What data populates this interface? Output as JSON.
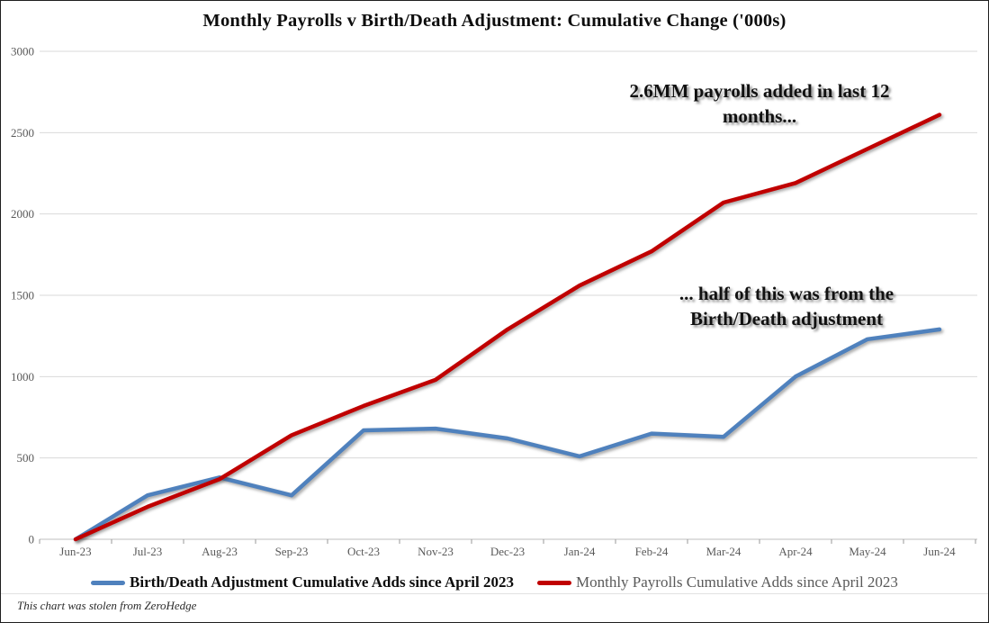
{
  "chart_data": {
    "type": "line",
    "title": "Monthly Payrolls v Birth/Death Adjustment: Cumulative Change ('000s)",
    "categories": [
      "Jun-23",
      "Jul-23",
      "Aug-23",
      "Sep-23",
      "Oct-23",
      "Nov-23",
      "Dec-23",
      "Jan-24",
      "Feb-24",
      "Mar-24",
      "Apr-24",
      "May-24",
      "Jun-24"
    ],
    "series": [
      {
        "name": "Birth/Death Adjustment Cumulative Adds since April 2023",
        "color": "#4F81BD",
        "values": [
          0,
          270,
          380,
          270,
          670,
          680,
          620,
          510,
          650,
          630,
          1000,
          1230,
          1290
        ]
      },
      {
        "name": "Monthly Payrolls Cumulative Adds since April 2023",
        "color": "#C00000",
        "values": [
          0,
          200,
          370,
          640,
          820,
          980,
          1290,
          1560,
          1770,
          2070,
          2190,
          2400,
          2610
        ]
      }
    ],
    "ylim": [
      0,
      3000
    ],
    "ytick_step": 500,
    "grid": true,
    "legend_position": "bottom",
    "annotations": [
      {
        "text": "2.6MM payrolls added in last 12\nmonths..."
      },
      {
        "text": "... half of this was from the\nBirth/Death adjustment"
      }
    ]
  },
  "footer": {
    "text": "This chart was stolen from ZeroHedge"
  },
  "colors": {
    "gridline": "#D9D9D9",
    "axis": "#BFBFBF",
    "tick_label": "#595959",
    "series_blue": "#4F81BD",
    "series_red": "#C00000"
  }
}
